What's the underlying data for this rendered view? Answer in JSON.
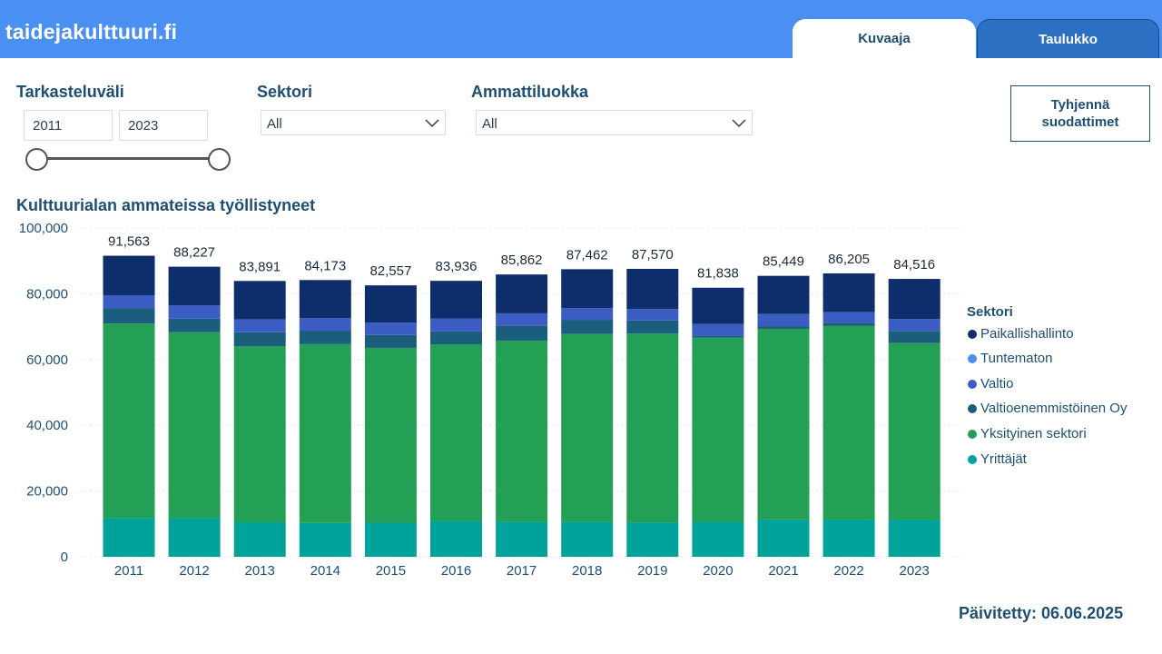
{
  "header": {
    "brand": "taidejakulttuuri.fi",
    "tabs": [
      {
        "label": "Kuvaaja",
        "active": true
      },
      {
        "label": "Taulukko",
        "active": false
      }
    ],
    "bg_color": "#4a90f2"
  },
  "filters": {
    "range": {
      "label": "Tarkasteluväli",
      "start": "2011",
      "end": "2023"
    },
    "sector": {
      "label": "Sektori",
      "value": "All"
    },
    "occupation": {
      "label": "Ammattiluokka",
      "value": "All"
    },
    "clear_button": "Tyhjennä suodattimet"
  },
  "chart_data": {
    "type": "bar",
    "stacked": true,
    "title": "Kulttuurialan ammateissa työllistyneet",
    "categories": [
      "2011",
      "2012",
      "2013",
      "2014",
      "2015",
      "2016",
      "2017",
      "2018",
      "2019",
      "2020",
      "2021",
      "2022",
      "2023"
    ],
    "totals": [
      91563,
      88227,
      83891,
      84173,
      82557,
      83936,
      85862,
      87462,
      87570,
      81838,
      85449,
      86205,
      84516
    ],
    "total_labels": [
      "91,563",
      "88,227",
      "83,891",
      "84,173",
      "82,557",
      "83,936",
      "85,862",
      "87,462",
      "87,570",
      "81,838",
      "85,449",
      "86,205",
      "84,516"
    ],
    "ylim": [
      0,
      100000
    ],
    "yticks": [
      0,
      20000,
      40000,
      60000,
      80000,
      100000
    ],
    "ytick_labels": [
      "0",
      "20,000",
      "40,000",
      "60,000",
      "80,000",
      "100,000"
    ],
    "grid": true,
    "legend_title": "Sektori",
    "legend_position": "right",
    "series": [
      {
        "name": "Paikallishallinto",
        "color": "#0d2d6b",
        "values": [
          12000,
          11800,
          11700,
          11600,
          11300,
          11500,
          11800,
          11800,
          12200,
          11000,
          11600,
          11800,
          12200
        ]
      },
      {
        "name": "Tuntematon",
        "color": "#4a90f2",
        "values": [
          0,
          0,
          0,
          0,
          0,
          0,
          0,
          0,
          0,
          0,
          0,
          0,
          0
        ]
      },
      {
        "name": "Valtio",
        "color": "#3b5cc2",
        "values": [
          4000,
          4000,
          3900,
          3800,
          3800,
          3900,
          3800,
          3700,
          3500,
          3600,
          3700,
          3300,
          3600
        ]
      },
      {
        "name": "Valtioenemmistöinen Oy",
        "color": "#1b5d7c",
        "values": [
          4600,
          4100,
          4300,
          4100,
          3900,
          3900,
          4500,
          4200,
          4000,
          600,
          800,
          800,
          3700
        ]
      },
      {
        "name": "Yksityinen sektori",
        "color": "#23a055",
        "values": [
          59200,
          56600,
          53500,
          54400,
          53200,
          53700,
          55100,
          57100,
          57400,
          56000,
          58000,
          59000,
          53700
        ]
      },
      {
        "name": "Yrittäjät",
        "color": "#00a39a",
        "values": [
          11763,
          11727,
          10491,
          10273,
          10357,
          10936,
          10662,
          10662,
          10470,
          10638,
          11349,
          11305,
          11316
        ]
      }
    ]
  },
  "updated": "Päivitetty: 06.06.2025"
}
